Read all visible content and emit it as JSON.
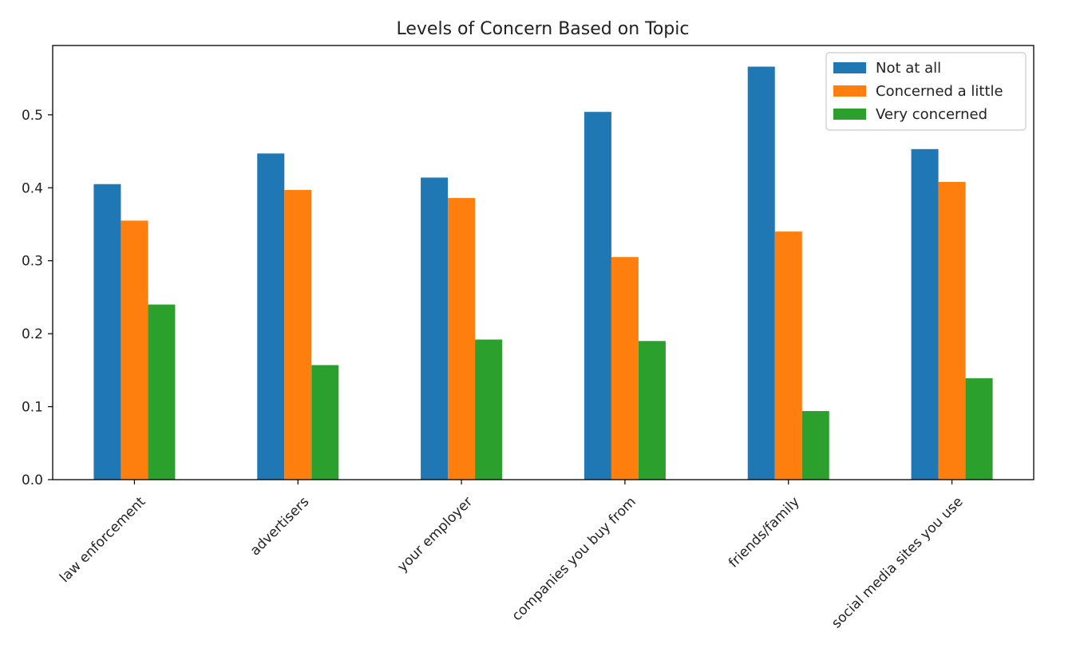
{
  "chart_data": {
    "type": "bar",
    "title": "Levels of Concern Based on Topic",
    "xlabel": "",
    "ylabel": "",
    "categories": [
      "law enforcement",
      "advertisers",
      "your employer",
      "companies you buy from",
      "friends/family",
      "social media sites you use"
    ],
    "series": [
      {
        "name": "Not at all",
        "color": "#1f77b4",
        "values": [
          0.405,
          0.447,
          0.414,
          0.504,
          0.566,
          0.453
        ]
      },
      {
        "name": "Concerned a little",
        "color": "#ff7f0e",
        "values": [
          0.355,
          0.397,
          0.386,
          0.305,
          0.34,
          0.408
        ]
      },
      {
        "name": "Very concerned",
        "color": "#2ca02c",
        "values": [
          0.24,
          0.157,
          0.192,
          0.19,
          0.094,
          0.139
        ]
      }
    ],
    "ylim": [
      0.0,
      0.595
    ],
    "yticks": [
      "0.0",
      "0.1",
      "0.2",
      "0.3",
      "0.4",
      "0.5"
    ],
    "grid": false,
    "legend_position": "top-right"
  }
}
